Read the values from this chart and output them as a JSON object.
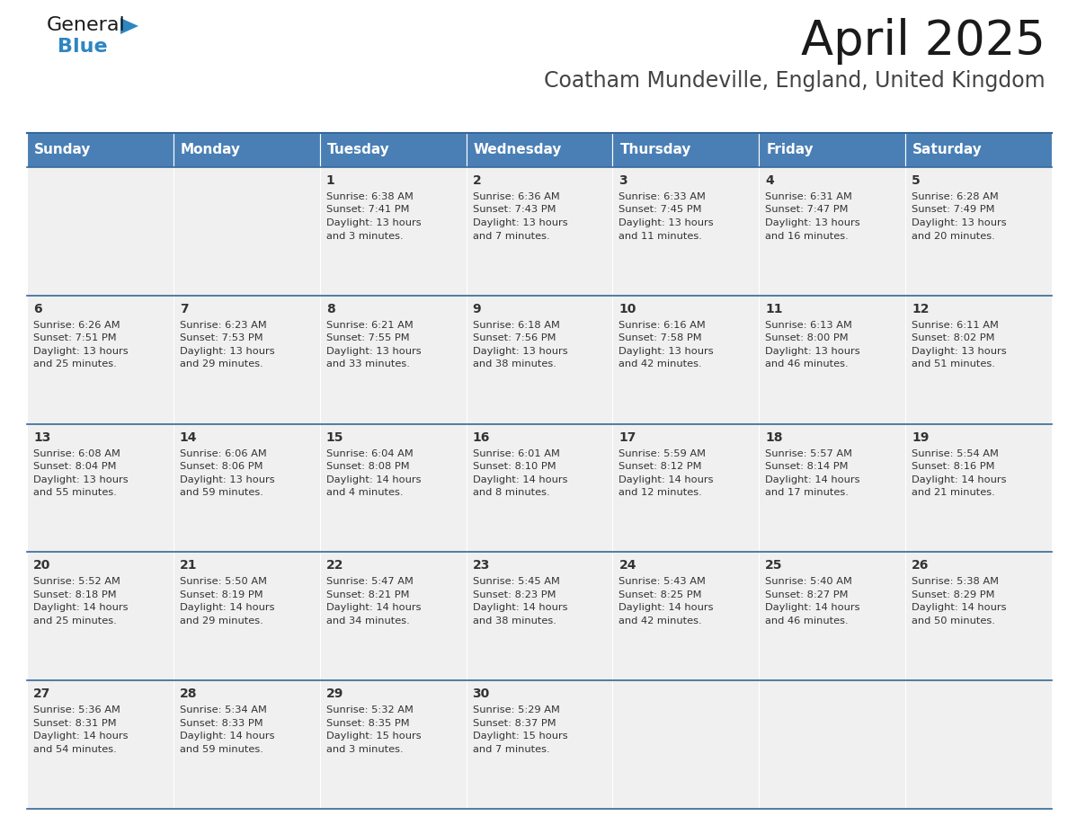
{
  "title": "April 2025",
  "subtitle": "Coatham Mundeville, England, United Kingdom",
  "header_color": "#4a7fb5",
  "header_text_color": "#ffffff",
  "cell_bg_color": "#f0f0f0",
  "text_color": "#333333",
  "border_color": "#336699",
  "days_of_week": [
    "Sunday",
    "Monday",
    "Tuesday",
    "Wednesday",
    "Thursday",
    "Friday",
    "Saturday"
  ],
  "calendar": [
    [
      {
        "day": null,
        "sunrise": null,
        "sunset": null,
        "daylight": null
      },
      {
        "day": null,
        "sunrise": null,
        "sunset": null,
        "daylight": null
      },
      {
        "day": 1,
        "sunrise": "6:38 AM",
        "sunset": "7:41 PM",
        "daylight": "13 hours\nand 3 minutes."
      },
      {
        "day": 2,
        "sunrise": "6:36 AM",
        "sunset": "7:43 PM",
        "daylight": "13 hours\nand 7 minutes."
      },
      {
        "day": 3,
        "sunrise": "6:33 AM",
        "sunset": "7:45 PM",
        "daylight": "13 hours\nand 11 minutes."
      },
      {
        "day": 4,
        "sunrise": "6:31 AM",
        "sunset": "7:47 PM",
        "daylight": "13 hours\nand 16 minutes."
      },
      {
        "day": 5,
        "sunrise": "6:28 AM",
        "sunset": "7:49 PM",
        "daylight": "13 hours\nand 20 minutes."
      }
    ],
    [
      {
        "day": 6,
        "sunrise": "6:26 AM",
        "sunset": "7:51 PM",
        "daylight": "13 hours\nand 25 minutes."
      },
      {
        "day": 7,
        "sunrise": "6:23 AM",
        "sunset": "7:53 PM",
        "daylight": "13 hours\nand 29 minutes."
      },
      {
        "day": 8,
        "sunrise": "6:21 AM",
        "sunset": "7:55 PM",
        "daylight": "13 hours\nand 33 minutes."
      },
      {
        "day": 9,
        "sunrise": "6:18 AM",
        "sunset": "7:56 PM",
        "daylight": "13 hours\nand 38 minutes."
      },
      {
        "day": 10,
        "sunrise": "6:16 AM",
        "sunset": "7:58 PM",
        "daylight": "13 hours\nand 42 minutes."
      },
      {
        "day": 11,
        "sunrise": "6:13 AM",
        "sunset": "8:00 PM",
        "daylight": "13 hours\nand 46 minutes."
      },
      {
        "day": 12,
        "sunrise": "6:11 AM",
        "sunset": "8:02 PM",
        "daylight": "13 hours\nand 51 minutes."
      }
    ],
    [
      {
        "day": 13,
        "sunrise": "6:08 AM",
        "sunset": "8:04 PM",
        "daylight": "13 hours\nand 55 minutes."
      },
      {
        "day": 14,
        "sunrise": "6:06 AM",
        "sunset": "8:06 PM",
        "daylight": "13 hours\nand 59 minutes."
      },
      {
        "day": 15,
        "sunrise": "6:04 AM",
        "sunset": "8:08 PM",
        "daylight": "14 hours\nand 4 minutes."
      },
      {
        "day": 16,
        "sunrise": "6:01 AM",
        "sunset": "8:10 PM",
        "daylight": "14 hours\nand 8 minutes."
      },
      {
        "day": 17,
        "sunrise": "5:59 AM",
        "sunset": "8:12 PM",
        "daylight": "14 hours\nand 12 minutes."
      },
      {
        "day": 18,
        "sunrise": "5:57 AM",
        "sunset": "8:14 PM",
        "daylight": "14 hours\nand 17 minutes."
      },
      {
        "day": 19,
        "sunrise": "5:54 AM",
        "sunset": "8:16 PM",
        "daylight": "14 hours\nand 21 minutes."
      }
    ],
    [
      {
        "day": 20,
        "sunrise": "5:52 AM",
        "sunset": "8:18 PM",
        "daylight": "14 hours\nand 25 minutes."
      },
      {
        "day": 21,
        "sunrise": "5:50 AM",
        "sunset": "8:19 PM",
        "daylight": "14 hours\nand 29 minutes."
      },
      {
        "day": 22,
        "sunrise": "5:47 AM",
        "sunset": "8:21 PM",
        "daylight": "14 hours\nand 34 minutes."
      },
      {
        "day": 23,
        "sunrise": "5:45 AM",
        "sunset": "8:23 PM",
        "daylight": "14 hours\nand 38 minutes."
      },
      {
        "day": 24,
        "sunrise": "5:43 AM",
        "sunset": "8:25 PM",
        "daylight": "14 hours\nand 42 minutes."
      },
      {
        "day": 25,
        "sunrise": "5:40 AM",
        "sunset": "8:27 PM",
        "daylight": "14 hours\nand 46 minutes."
      },
      {
        "day": 26,
        "sunrise": "5:38 AM",
        "sunset": "8:29 PM",
        "daylight": "14 hours\nand 50 minutes."
      }
    ],
    [
      {
        "day": 27,
        "sunrise": "5:36 AM",
        "sunset": "8:31 PM",
        "daylight": "14 hours\nand 54 minutes."
      },
      {
        "day": 28,
        "sunrise": "5:34 AM",
        "sunset": "8:33 PM",
        "daylight": "14 hours\nand 59 minutes."
      },
      {
        "day": 29,
        "sunrise": "5:32 AM",
        "sunset": "8:35 PM",
        "daylight": "15 hours\nand 3 minutes."
      },
      {
        "day": 30,
        "sunrise": "5:29 AM",
        "sunset": "8:37 PM",
        "daylight": "15 hours\nand 7 minutes."
      },
      {
        "day": null,
        "sunrise": null,
        "sunset": null,
        "daylight": null
      },
      {
        "day": null,
        "sunrise": null,
        "sunset": null,
        "daylight": null
      },
      {
        "day": null,
        "sunrise": null,
        "sunset": null,
        "daylight": null
      }
    ]
  ],
  "logo_general_color": "#1a1a1a",
  "logo_blue_color": "#2e86c1",
  "logo_triangle_color": "#2e86c1"
}
